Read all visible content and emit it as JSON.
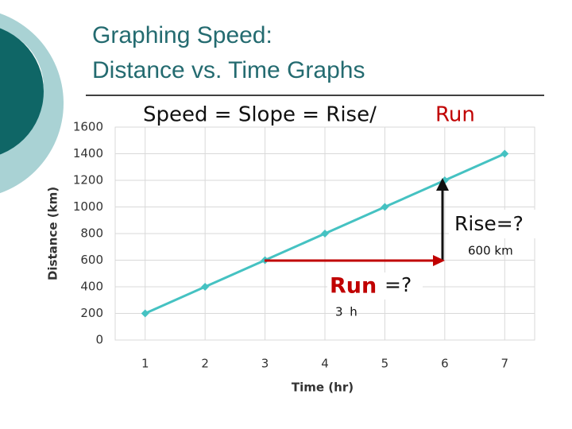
{
  "slide": {
    "title": [
      "Graphing Speed:",
      "Distance vs. Time Graphs"
    ]
  },
  "chart_data": {
    "type": "line",
    "x": [
      1,
      2,
      3,
      4,
      5,
      6,
      7
    ],
    "values": [
      200,
      400,
      600,
      800,
      1000,
      1200,
      1400
    ],
    "color": "#45c2c2",
    "xlim": [
      0.5,
      7.5
    ],
    "xticks": [
      1,
      2,
      3,
      4,
      5,
      6,
      7
    ],
    "ylim": [
      0,
      1600
    ],
    "yticks": [
      0,
      200,
      400,
      600,
      800,
      1000,
      1200,
      1400,
      1600
    ],
    "grid": true,
    "x_label": "Time (hr)",
    "y_label": "Distance (km)",
    "annotations": {
      "formula": "Speed = Slope = Rise/",
      "formula_run": "Run",
      "rise": "Rise=?",
      "rise_value": "600 km",
      "run": "Run",
      "run_q": "=?",
      "run_value": "3 h"
    }
  }
}
